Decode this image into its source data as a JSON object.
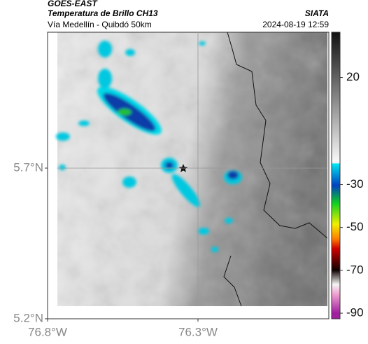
{
  "header": {
    "satellite": "GOES-EAST",
    "product": "Temperatura de Brillo CH13",
    "source": "SIATA",
    "route": "Vía Medellín - Quibdó 50km",
    "datetime": "2024-08-19 12:59"
  },
  "map": {
    "xlim": [
      -76.8,
      -75.865
    ],
    "ylim": [
      5.2,
      6.151
    ],
    "xticks": [
      {
        "value": -76.8,
        "label": "76.8°W"
      },
      {
        "value": -76.3,
        "label": "76.3°W"
      }
    ],
    "yticks": [
      {
        "value": 5.2,
        "label": "5.2°N"
      },
      {
        "value": 5.7,
        "label": "5.7°N"
      }
    ],
    "grid": true
  },
  "colorbar": {
    "clim": [
      -92.6,
      41.1
    ],
    "ticks": [
      20,
      -30,
      -50,
      -70,
      -90
    ]
  }
}
